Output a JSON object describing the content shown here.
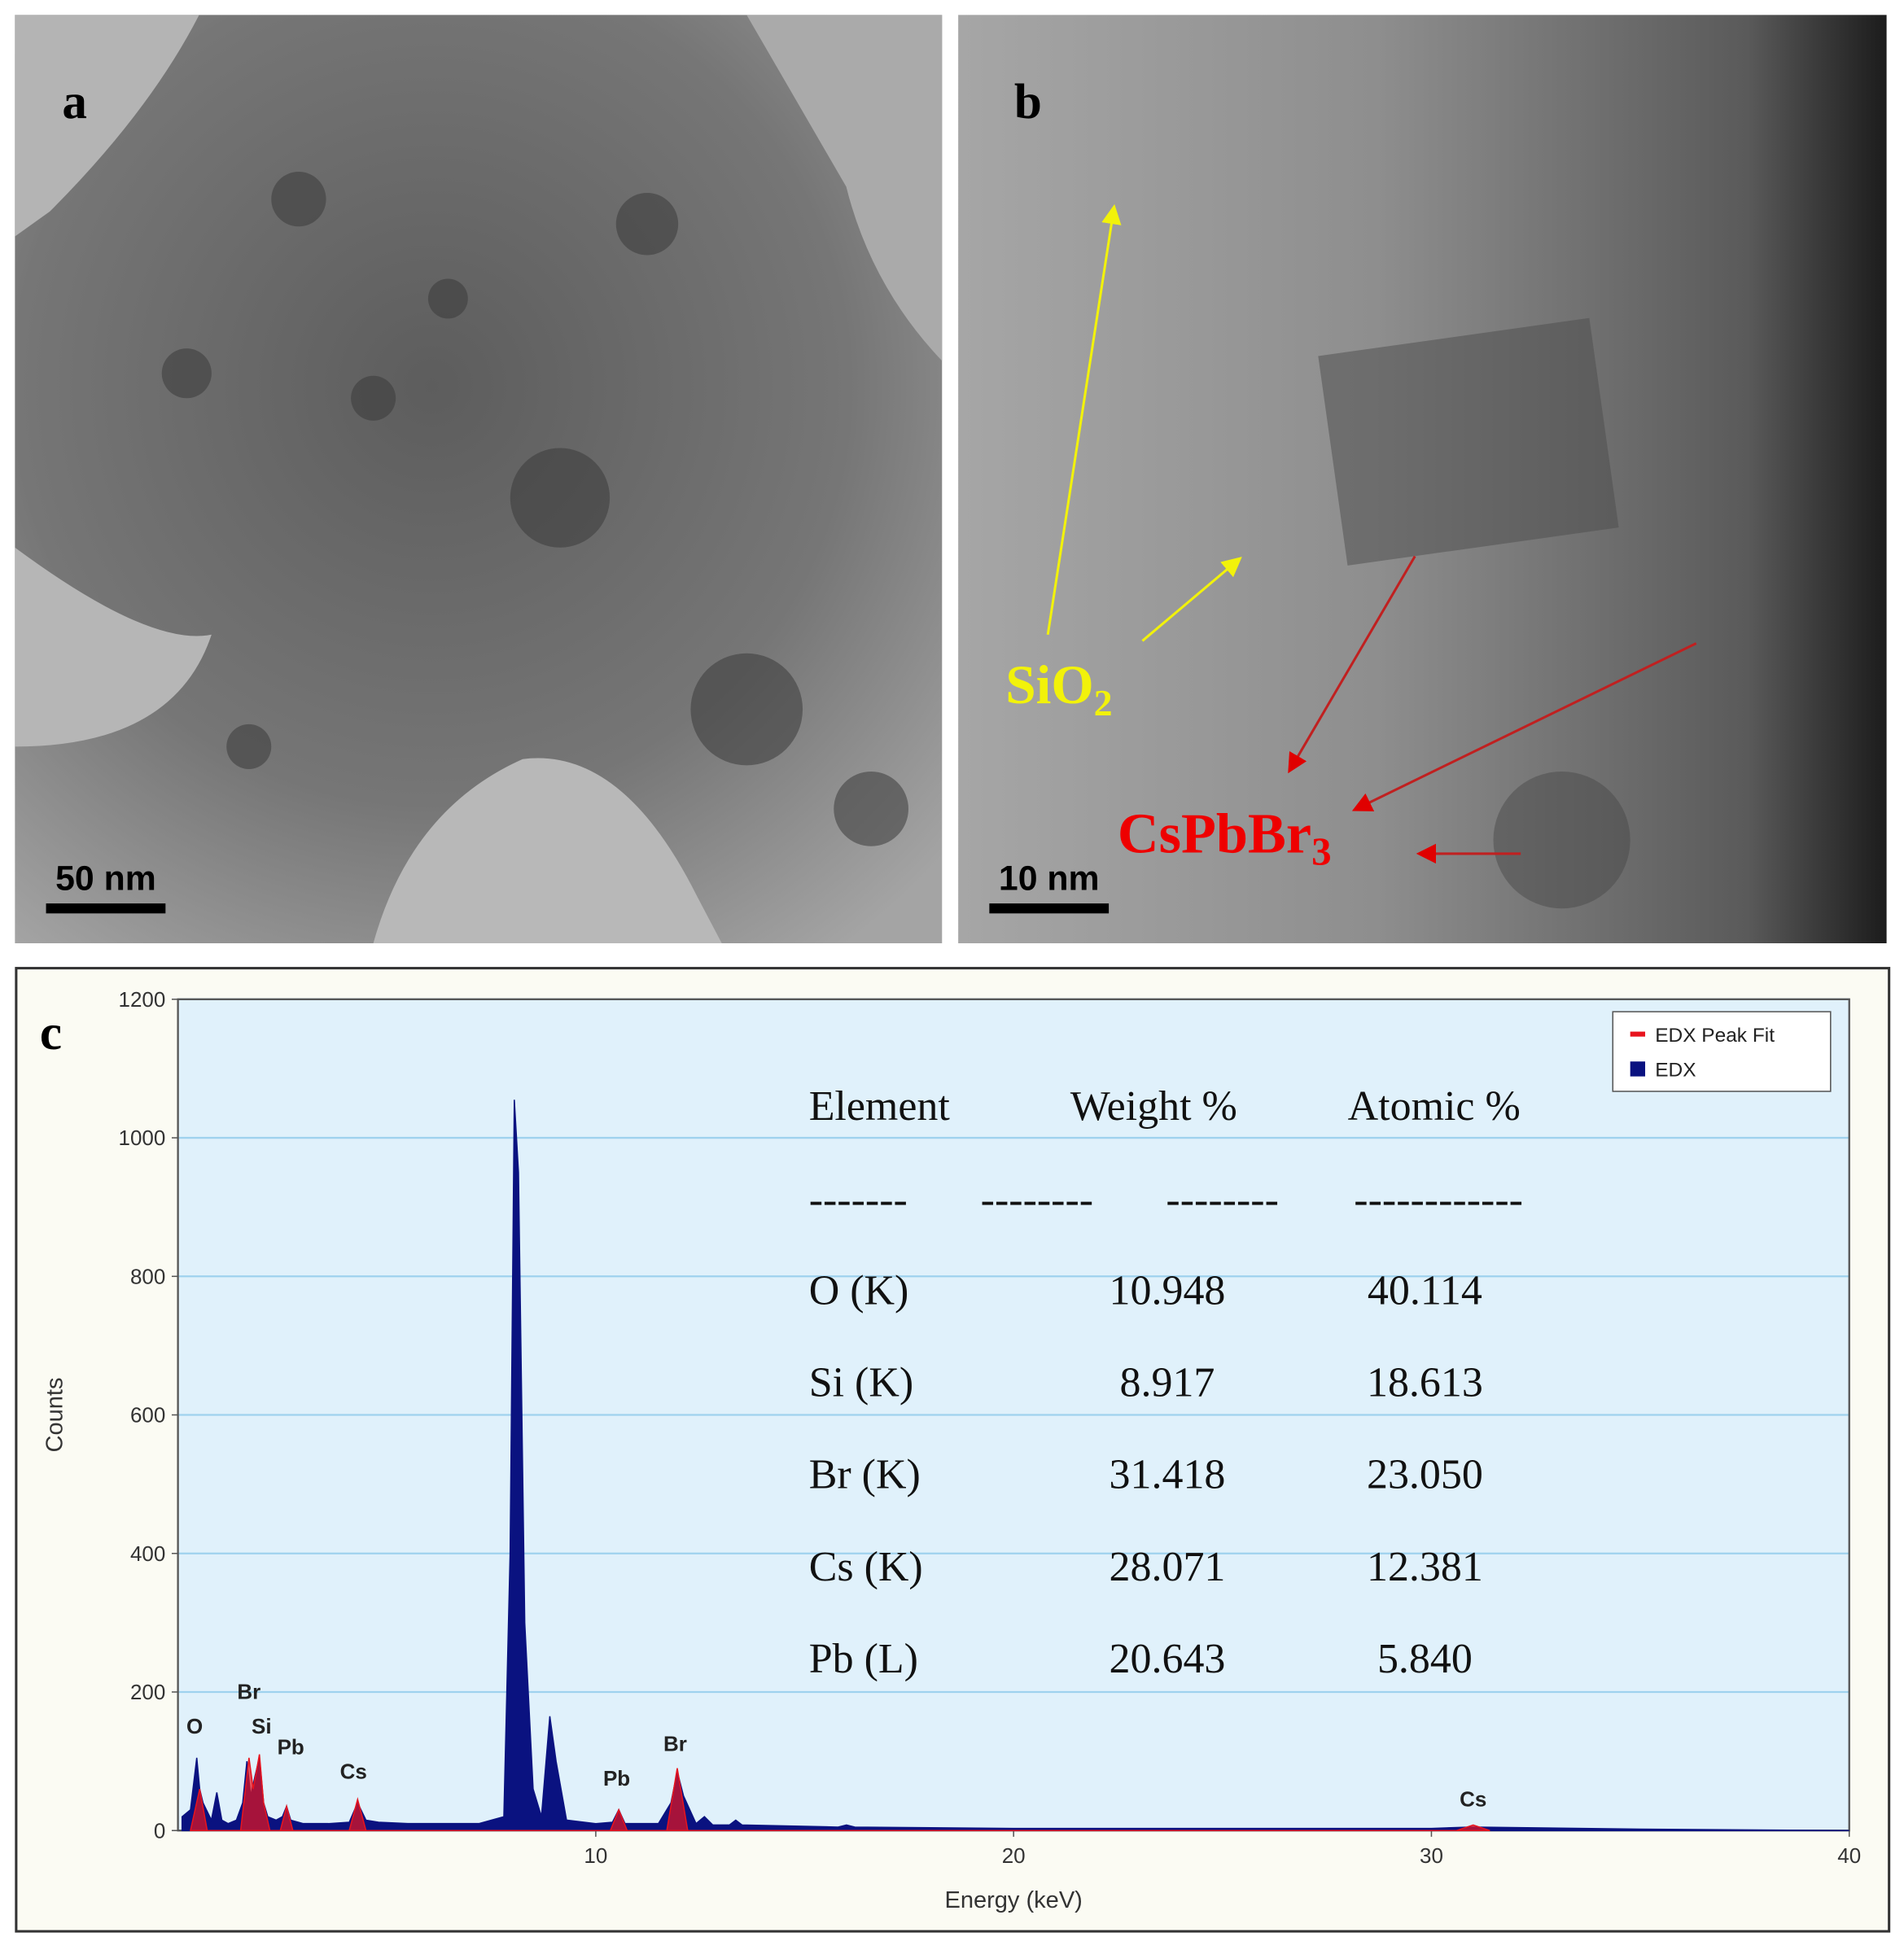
{
  "panels": {
    "a": {
      "label": "a",
      "scale_bar": "50 nm"
    },
    "b": {
      "label": "b",
      "scale_bar": "10 nm",
      "annotations": [
        {
          "text": "SiO",
          "sub": "2"
        },
        {
          "text": "CsPbBr",
          "sub": "3"
        }
      ]
    }
  },
  "chart_data": {
    "type": "area",
    "panel_label": "c",
    "x_label": "Energy (keV)",
    "y_label": "Counts",
    "xlim": [
      0,
      40
    ],
    "xticks": [
      10,
      20,
      30,
      40
    ],
    "ylim": [
      0,
      1200
    ],
    "yticks": [
      0,
      200,
      400,
      600,
      800,
      1000,
      1200
    ],
    "grid": true,
    "legend": "top-right",
    "x": [
      0.1,
      0.3,
      0.45,
      0.52,
      0.6,
      0.8,
      0.93,
      1.05,
      1.2,
      1.4,
      1.55,
      1.65,
      1.74,
      1.85,
      1.95,
      2.05,
      2.15,
      2.35,
      2.5,
      2.6,
      2.7,
      3.0,
      3.6,
      4.1,
      4.3,
      4.5,
      4.8,
      5.5,
      6.5,
      7.2,
      7.5,
      7.8,
      7.95,
      8.05,
      8.15,
      8.3,
      8.5,
      8.7,
      8.9,
      9.05,
      9.3,
      10.0,
      10.4,
      10.55,
      10.7,
      11.5,
      11.8,
      11.95,
      12.1,
      12.4,
      12.6,
      12.8,
      13.2,
      13.35,
      13.5,
      15.8,
      16.0,
      16.2,
      20,
      25,
      30,
      30.9,
      31.1,
      35,
      40
    ],
    "series": [
      {
        "name": "EDX",
        "color": "#0a1280",
        "values": [
          20,
          30,
          105,
          60,
          40,
          15,
          55,
          15,
          10,
          15,
          40,
          100,
          50,
          80,
          105,
          40,
          20,
          15,
          20,
          35,
          15,
          10,
          10,
          12,
          40,
          15,
          12,
          10,
          10,
          10,
          15,
          20,
          400,
          1055,
          950,
          300,
          60,
          20,
          165,
          100,
          15,
          10,
          12,
          30,
          10,
          10,
          40,
          85,
          50,
          10,
          20,
          8,
          8,
          15,
          8,
          5,
          8,
          5,
          3,
          3,
          3,
          5,
          5,
          2,
          0
        ]
      },
      {
        "name": "EDX Peak Fit",
        "color": "#e8141e",
        "x": [
          0.3,
          0.52,
          0.7,
          1.5,
          1.7,
          1.8,
          1.95,
          2.05,
          2.2,
          2.45,
          2.6,
          2.75,
          4.1,
          4.3,
          4.5,
          10.35,
          10.55,
          10.75,
          11.7,
          11.95,
          12.2,
          30.6,
          31.0,
          31.4
        ],
        "values": [
          0,
          60,
          0,
          0,
          105,
          60,
          110,
          40,
          0,
          0,
          35,
          0,
          0,
          45,
          0,
          0,
          30,
          0,
          0,
          90,
          0,
          0,
          8,
          0
        ]
      }
    ],
    "annotations": [
      {
        "text": "O",
        "x": 0.4,
        "y": 140
      },
      {
        "text": "Br",
        "x": 1.7,
        "y": 190
      },
      {
        "text": "Si",
        "x": 2.0,
        "y": 140
      },
      {
        "text": "Pb",
        "x": 2.7,
        "y": 110
      },
      {
        "text": "Cs",
        "x": 4.2,
        "y": 75
      },
      {
        "text": "Pb",
        "x": 10.5,
        "y": 65
      },
      {
        "text": "Br",
        "x": 11.9,
        "y": 115
      },
      {
        "text": "Cs",
        "x": 31,
        "y": 35
      }
    ],
    "table": {
      "header": [
        "Element",
        "Weight %",
        "Atomic %"
      ],
      "dashes": [
        "-------",
        "--------",
        "--------",
        "------------"
      ],
      "rows": [
        [
          "O (K)",
          "10.948",
          "40.114"
        ],
        [
          "Si (K)",
          "8.917",
          "18.613"
        ],
        [
          "Br (K)",
          "31.418",
          "23.050"
        ],
        [
          "Cs (K)",
          "28.071",
          "12.381"
        ],
        [
          "Pb (L)",
          "20.643",
          "5.840"
        ]
      ]
    }
  }
}
